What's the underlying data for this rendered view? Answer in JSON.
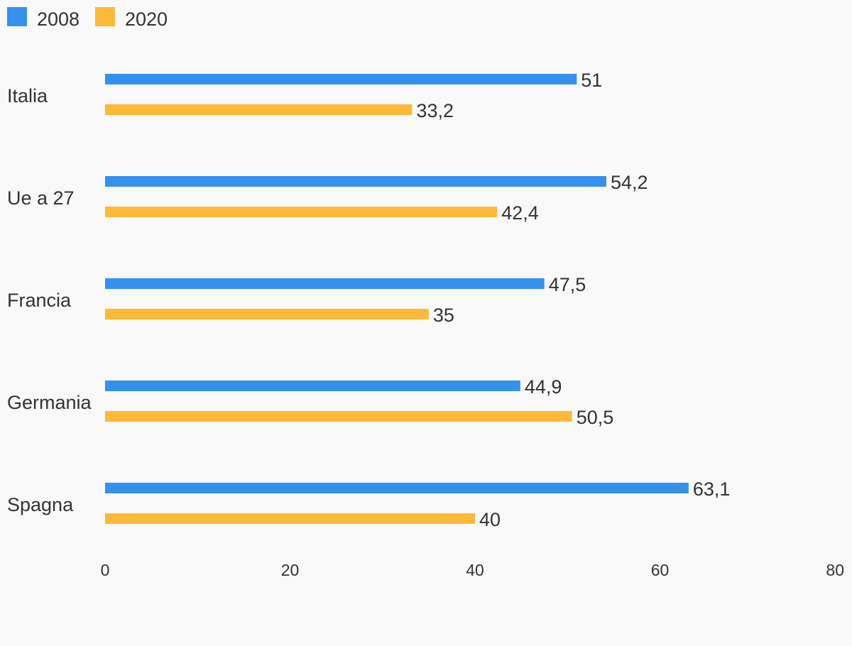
{
  "chart_data": {
    "type": "bar",
    "orientation": "horizontal",
    "categories": [
      "Italia",
      "Ue a 27",
      "Francia",
      "Germania",
      "Spagna"
    ],
    "series": [
      {
        "name": "2008",
        "color": "#3590ee",
        "values": [
          51,
          54.2,
          47.5,
          44.9,
          63.1
        ],
        "labels": [
          "51",
          "54,2",
          "47,5",
          "44,9",
          "63,1"
        ]
      },
      {
        "name": "2020",
        "color": "#ffb938",
        "values": [
          33.2,
          42.4,
          35,
          50.5,
          40
        ],
        "labels": [
          "33,2",
          "42,4",
          "35",
          "50,5",
          "40"
        ]
      }
    ],
    "xlim": [
      0,
      80
    ],
    "xticks": [
      "0",
      "20",
      "40",
      "60",
      "80"
    ],
    "xlabel": "",
    "ylabel": "",
    "grid": false,
    "legend": "top-left"
  }
}
